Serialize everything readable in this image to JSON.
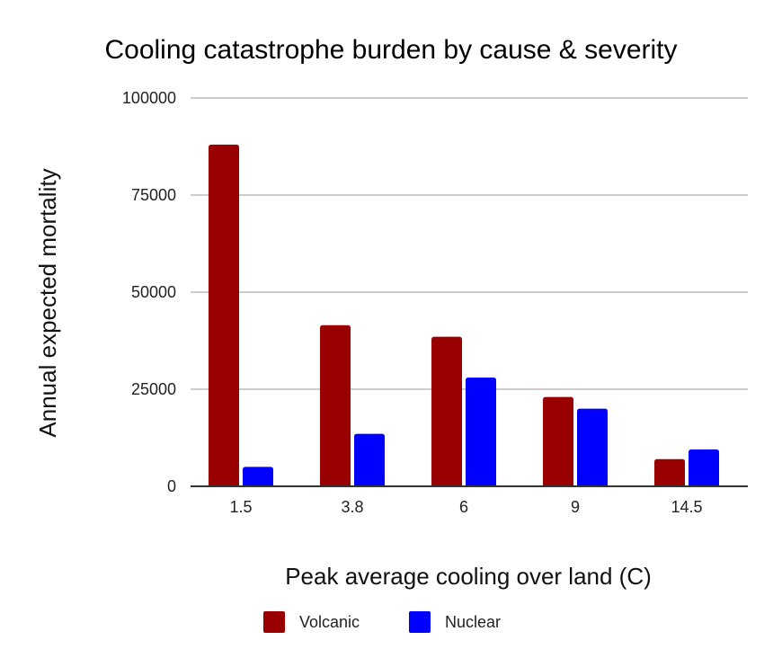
{
  "chart_data": {
    "type": "bar",
    "title": "Cooling catastrophe burden by cause & severity",
    "xlabel": "Peak average cooling over land (C)",
    "ylabel": "Annual expected mortality",
    "categories": [
      "1.5",
      "3.8",
      "6",
      "9",
      "14.5"
    ],
    "series": [
      {
        "name": "Volcanic",
        "color": "#990000",
        "values": [
          88000,
          41500,
          38500,
          23000,
          7000
        ]
      },
      {
        "name": "Nuclear",
        "color": "#0000ff",
        "values": [
          5000,
          13500,
          28000,
          20000,
          9500
        ]
      }
    ],
    "ylim": [
      0,
      100000
    ],
    "yticks": [
      "0",
      "25000",
      "50000",
      "75000",
      "100000"
    ],
    "ytick_values": [
      0,
      25000,
      50000,
      75000,
      100000
    ],
    "grid": true,
    "legend_position": "bottom"
  }
}
